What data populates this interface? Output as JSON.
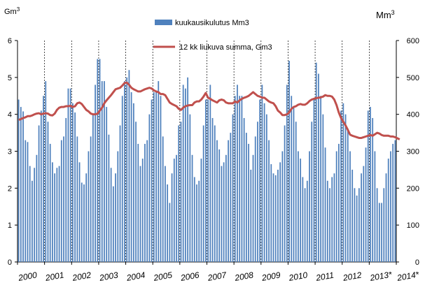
{
  "chart_data": {
    "type": "bar+line",
    "left_unit": "Gm",
    "left_unit_sup": "3",
    "right_unit": "Mm",
    "right_unit_sup": "3",
    "left_ylim": [
      0,
      6
    ],
    "right_ylim": [
      0,
      600
    ],
    "left_ticks": [
      "0",
      "1",
      "2",
      "3",
      "4",
      "5",
      "6"
    ],
    "right_ticks": [
      "0",
      "100",
      "200",
      "300",
      "400",
      "500",
      "600"
    ],
    "years": [
      "2000",
      "2001",
      "2002",
      "2003",
      "2004",
      "2005",
      "2006",
      "2007",
      "2008",
      "2009",
      "2010",
      "2011",
      "2012",
      "2013*",
      "2014*"
    ],
    "legend": [
      {
        "label": "kuukausikulutus Mm3",
        "color": "#4f81bd",
        "kind": "bar"
      },
      {
        "label": "12 kk liukuva summa,  Gm3",
        "color": "#c0504d",
        "kind": "line"
      }
    ],
    "series": [
      {
        "name": "kuukausikulutus Mm3",
        "axis": "right",
        "start": "2000-01",
        "values": [
          440,
          420,
          408,
          330,
          325,
          260,
          220,
          255,
          290,
          370,
          410,
          450,
          490,
          380,
          320,
          270,
          240,
          255,
          260,
          330,
          340,
          390,
          470,
          470,
          430,
          405,
          340,
          270,
          215,
          210,
          240,
          300,
          340,
          400,
          480,
          550,
          550,
          490,
          490,
          420,
          345,
          255,
          205,
          240,
          300,
          370,
          450,
          490,
          500,
          520,
          460,
          430,
          380,
          320,
          260,
          280,
          320,
          330,
          400,
          440,
          460,
          460,
          490,
          450,
          340,
          260,
          210,
          160,
          240,
          280,
          290,
          370,
          380,
          480,
          470,
          500,
          400,
          290,
          230,
          210,
          220,
          280,
          370,
          440,
          440,
          480,
          390,
          370,
          330,
          305,
          260,
          270,
          290,
          330,
          350,
          400,
          450,
          480,
          450,
          450,
          390,
          350,
          320,
          250,
          290,
          340,
          380,
          440,
          480,
          430,
          400,
          330,
          265,
          240,
          235,
          250,
          270,
          300,
          370,
          480,
          545,
          450,
          420,
          380,
          300,
          280,
          230,
          200,
          220,
          300,
          380,
          440,
          540,
          510,
          450,
          400,
          310,
          220,
          200,
          230,
          240,
          300,
          320,
          410,
          430,
          400,
          360,
          300,
          250,
          200,
          180,
          200,
          240,
          260,
          310,
          410,
          420,
          390,
          300,
          200,
          160,
          160,
          200,
          240,
          280,
          300,
          320,
          330
        ]
      },
      {
        "name": "12 kk liukuva summa,  Gm3",
        "axis": "left",
        "start": "2000-01",
        "values": [
          3.85,
          3.87,
          3.9,
          3.92,
          3.95,
          3.95,
          3.97,
          4.0,
          4.02,
          4.03,
          4.0,
          4.02,
          4.03,
          4.02,
          3.98,
          3.97,
          4.02,
          4.12,
          4.18,
          4.2,
          4.2,
          4.22,
          4.22,
          4.23,
          4.2,
          4.22,
          4.3,
          4.32,
          4.28,
          4.2,
          4.12,
          4.08,
          4.02,
          4.0,
          4.0,
          4.02,
          4.1,
          4.18,
          4.3,
          4.38,
          4.45,
          4.52,
          4.6,
          4.68,
          4.7,
          4.72,
          4.78,
          4.85,
          4.86,
          4.8,
          4.72,
          4.68,
          4.65,
          4.62,
          4.62,
          4.65,
          4.68,
          4.7,
          4.72,
          4.7,
          4.65,
          4.62,
          4.6,
          4.55,
          4.55,
          4.52,
          4.42,
          4.32,
          4.28,
          4.25,
          4.22,
          4.15,
          4.12,
          4.18,
          4.22,
          4.24,
          4.25,
          4.25,
          4.32,
          4.35,
          4.35,
          4.4,
          4.48,
          4.58,
          4.45,
          4.42,
          4.38,
          4.35,
          4.32,
          4.38,
          4.4,
          4.38,
          4.32,
          4.3,
          4.3,
          4.3,
          4.35,
          4.32,
          4.38,
          4.42,
          4.45,
          4.47,
          4.5,
          4.55,
          4.6,
          4.55,
          4.5,
          4.48,
          4.45,
          4.45,
          4.4,
          4.35,
          4.32,
          4.3,
          4.22,
          4.1,
          4.05,
          3.98,
          3.98,
          4.0,
          4.05,
          4.15,
          4.2,
          4.22,
          4.26,
          4.28,
          4.26,
          4.26,
          4.3,
          4.36,
          4.4,
          4.42,
          4.44,
          4.45,
          4.46,
          4.48,
          4.52,
          4.5,
          4.5,
          4.48,
          4.4,
          4.25,
          4.05,
          3.9,
          3.8,
          3.7,
          3.58,
          3.45,
          3.42,
          3.4,
          3.38,
          3.36,
          3.36,
          3.38,
          3.4,
          3.42,
          3.44,
          3.42,
          3.46,
          3.5,
          3.48,
          3.44,
          3.42,
          3.42,
          3.42,
          3.4,
          3.4,
          3.38,
          3.35,
          3.32
        ]
      }
    ]
  }
}
